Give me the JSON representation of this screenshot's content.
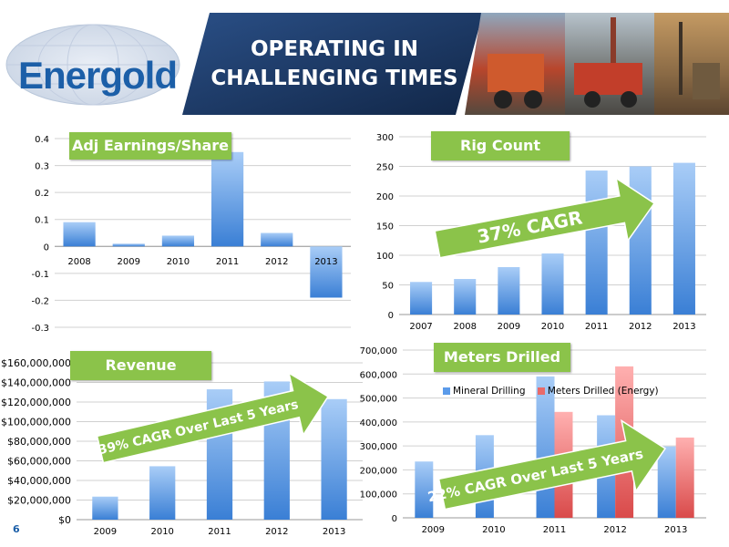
{
  "header": {
    "logo_text": "Energold",
    "title_line1": "OPERATING IN",
    "title_line2": "CHALLENGING TIMES"
  },
  "page_number": "6",
  "colors": {
    "bar_blue_top": "#a9cdf7",
    "bar_blue_bottom": "#3a7fd5",
    "bar_red_top": "#ffb0b0",
    "bar_red_bottom": "#d94a4a",
    "label_green": "#8bc34a",
    "arrow_green": "#8bc34a",
    "title_navy": "#16305a",
    "logo_blue": "#1c5fa8"
  },
  "chart_data": [
    {
      "id": "eps",
      "type": "bar",
      "label": "Adj Earnings/Share",
      "categories": [
        "2008",
        "2009",
        "2010",
        "2011",
        "2012",
        "2013"
      ],
      "values": [
        0.09,
        0.01,
        0.04,
        0.35,
        0.05,
        -0.19
      ],
      "ylim": [
        -0.3,
        0.4
      ],
      "yticks": [
        0.4,
        0.3,
        0.2,
        0.1,
        0,
        -0.1,
        -0.2,
        -0.3
      ],
      "ytick_labels": [
        "0.4",
        "0.3",
        "0.2",
        "0.1",
        "0",
        "-0.1",
        "-0.2",
        "-0.3"
      ],
      "grid": true
    },
    {
      "id": "rigs",
      "type": "bar",
      "label": "Rig Count",
      "categories": [
        "2007",
        "2008",
        "2009",
        "2010",
        "2011",
        "2012",
        "2013"
      ],
      "values": [
        55,
        60,
        80,
        103,
        243,
        250,
        256
      ],
      "ylim": [
        0,
        300
      ],
      "yticks": [
        300,
        250,
        200,
        150,
        100,
        50,
        0
      ],
      "ytick_labels": [
        "300",
        "250",
        "200",
        "150",
        "100",
        "50",
        "0"
      ],
      "annotation": "37% CAGR",
      "grid": true
    },
    {
      "id": "revenue",
      "type": "bar",
      "label": "Revenue",
      "categories": [
        "2009",
        "2010",
        "2011",
        "2012",
        "2013"
      ],
      "values": [
        23500000,
        54500000,
        133000000,
        141000000,
        123000000
      ],
      "ylim": [
        0,
        160000000
      ],
      "yticks": [
        160000000,
        140000000,
        120000000,
        100000000,
        80000000,
        60000000,
        40000000,
        20000000,
        0
      ],
      "ytick_labels": [
        "$160,000,000",
        "$140,000,000",
        "$120,000,000",
        "$100,000,000",
        "$80,000,000",
        "$60,000,000",
        "$40,000,000",
        "$20,000,000",
        "$0"
      ],
      "annotation": "39% CAGR Over Last 5 Years",
      "grid": true
    },
    {
      "id": "meters",
      "type": "bar",
      "label": "Meters Drilled",
      "categories": [
        "2009",
        "2010",
        "2011",
        "2012",
        "2013"
      ],
      "series": [
        {
          "name": "Mineral Drilling",
          "values": [
            235000,
            345000,
            590000,
            428000,
            298000
          ]
        },
        {
          "name": "Meters Drilled (Energy)",
          "values": [
            0,
            0,
            442000,
            632000,
            335000
          ]
        }
      ],
      "ylim": [
        0,
        700000
      ],
      "yticks": [
        700000,
        600000,
        500000,
        400000,
        300000,
        200000,
        100000,
        0
      ],
      "ytick_labels": [
        "700,000",
        "600,000",
        "500,000",
        "400,000",
        "300,000",
        "200,000",
        "100,000",
        "0"
      ],
      "legend": "top-left",
      "annotation": "22% CAGR Over Last 5 Years",
      "grid": true
    }
  ]
}
